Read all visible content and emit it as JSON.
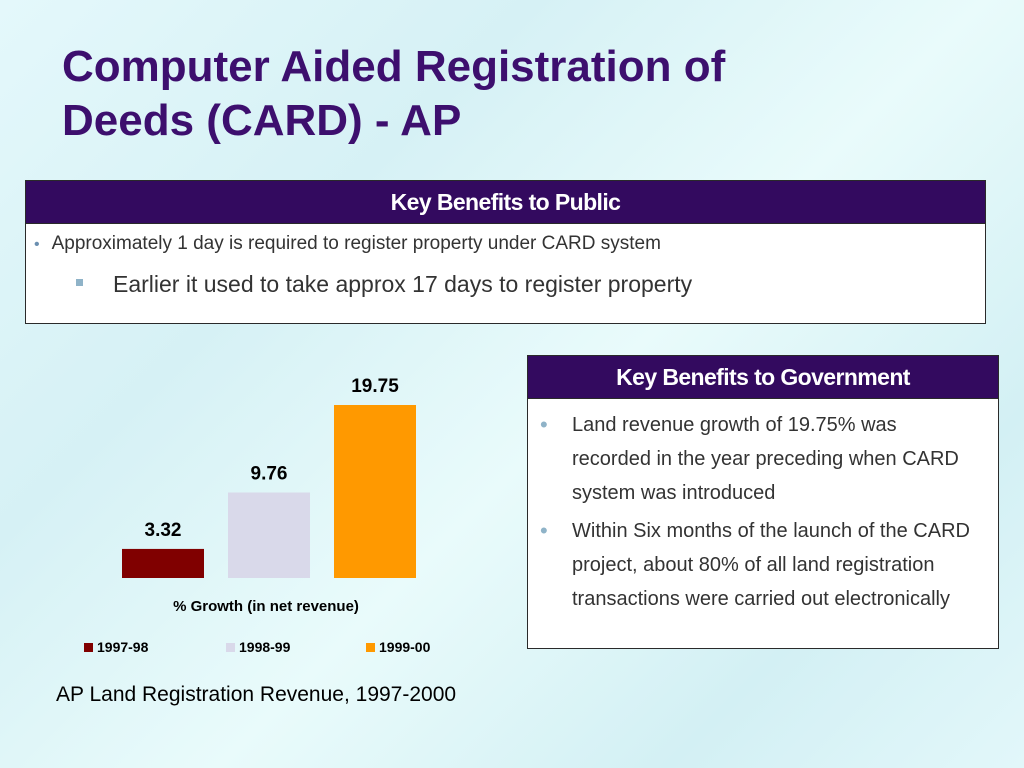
{
  "slide": {
    "title_line1": "Computer Aided Registration of",
    "title_line2": "Deeds (CARD) - AP"
  },
  "public_box": {
    "header": "Key Benefits to Public",
    "bullet1": "Approximately 1 day is required to register property under CARD system",
    "bullet2": "Earlier  it used to take approx 17 days to register property"
  },
  "gov_box": {
    "header": "Key Benefits to Government",
    "items": [
      "Land revenue growth of 19.75% was recorded in the year preceding when CARD system was introduced",
      "Within Six months of the launch of the CARD project, about 80% of all land registration transactions were carried out electronically"
    ]
  },
  "chart_data": {
    "type": "bar",
    "title": "",
    "xlabel": "% Growth (in net revenue)",
    "ylabel": "",
    "ylim": [
      0,
      19.75
    ],
    "grid": false,
    "legend_position": "bottom",
    "categories": [
      "1997-98",
      "1998-99",
      "1999-00"
    ],
    "values": [
      3.32,
      9.76,
      19.75
    ],
    "value_labels": [
      "3.32",
      "9.76",
      "19.75"
    ],
    "colors": [
      "#800000",
      "#d9d9ea",
      "#ff9900"
    ]
  },
  "caption": "AP Land Registration Revenue, 1997-2000"
}
